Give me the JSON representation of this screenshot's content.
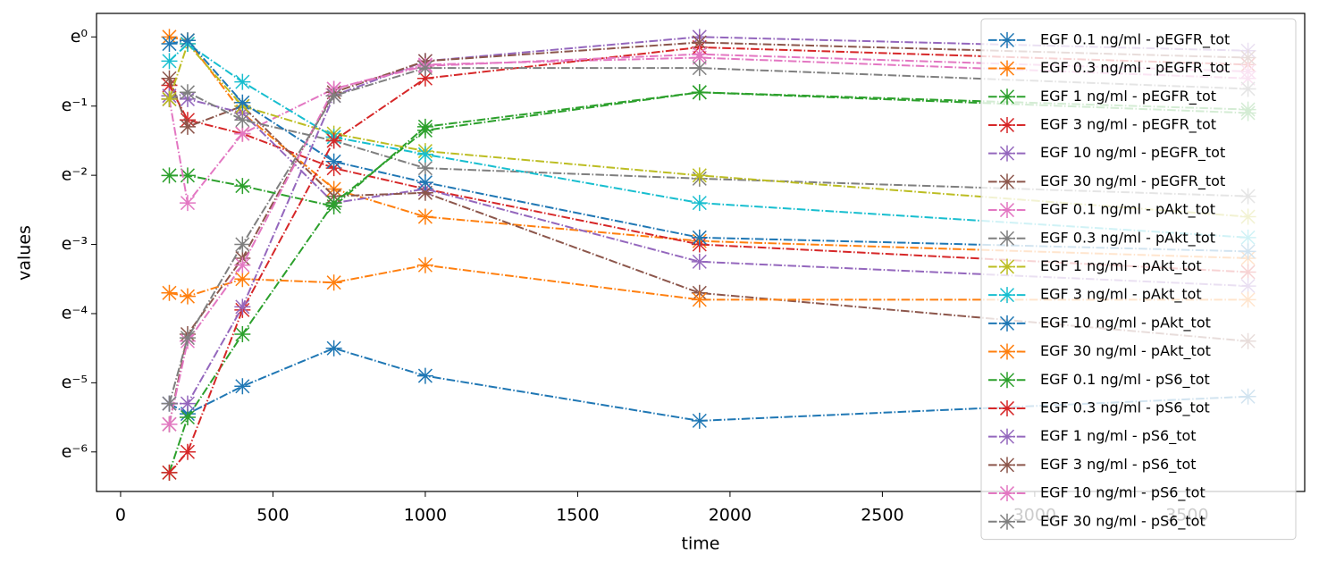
{
  "chart_data": {
    "type": "line",
    "x_label": "time",
    "y_label": "values",
    "x": [
      160,
      220,
      400,
      700,
      1000,
      1900,
      3700
    ],
    "xlim": [
      -79,
      3886
    ],
    "xticks": [
      0,
      500,
      1000,
      1500,
      2000,
      2500,
      3000,
      3500
    ],
    "ylim": [
      0.0014,
      1.405
    ],
    "log_scale": "y",
    "yticks": [
      {
        "value": 1,
        "label": "e⁰"
      },
      {
        "value": 0.367879,
        "label": "e⁻¹"
      },
      {
        "value": 0.135335,
        "label": "e⁻²"
      },
      {
        "value": 0.049787,
        "label": "e⁻³"
      },
      {
        "value": 0.018316,
        "label": "e⁻⁴"
      },
      {
        "value": 0.006738,
        "label": "e⁻⁵"
      },
      {
        "value": 0.002479,
        "label": "e⁻⁶"
      }
    ],
    "legend": "upper right",
    "series": [
      {
        "name": "EGF 0.1 ng/ml - pEGFR_tot",
        "color": "#1f77b4",
        "values": [
          0.00499,
          0.0043,
          0.00641,
          0.0111,
          0.00745,
          0.00389,
          0.00552
        ]
      },
      {
        "name": "EGF 0.3 ng/ml - pEGFR_tot",
        "color": "#ff7f0e",
        "values": [
          1,
          0.951,
          0.333,
          0.111,
          0.0743,
          0.0523,
          0.0408
        ]
      },
      {
        "name": "EGF 1 ng/ml - pEGFR_tot",
        "color": "#2ca02c",
        "values": [
          0.135,
          0.135,
          0.116,
          0.0863,
          0.273,
          0.449,
          0.35
        ]
      },
      {
        "name": "EGF 3 ng/ml - pEGFR_tot",
        "color": "#d62728",
        "values": [
          0.497,
          0.301,
          0.247,
          0.15,
          0.111,
          0.0498,
          0.0334
        ]
      },
      {
        "name": "EGF 10 ng/ml - pEGFR_tot",
        "color": "#9467bd",
        "values": [
          0.427,
          0.407,
          0.333,
          0.0907,
          0.111,
          0.0388,
          0.0273
        ]
      },
      {
        "name": "EGF 30 ng/ml - pEGFR_tot",
        "color": "#8c564b",
        "values": [
          0.549,
          0.273,
          0.368,
          0.1,
          0.105,
          0.0247,
          0.0123
        ]
      },
      {
        "name": "EGF 0.1 ng/ml - pAkt_tot",
        "color": "#e377c2",
        "values": [
          0.407,
          0.0907,
          0.247,
          0.472,
          0.67,
          0.741,
          0.549
        ]
      },
      {
        "name": "EGF 0.3 ng/ml - pAkt_tot",
        "color": "#7f7f7f",
        "values": [
          0.407,
          0.449,
          0.301,
          0.223,
          0.15,
          0.129,
          0.1
        ]
      },
      {
        "name": "EGF 1 ng/ml - pAkt_tot",
        "color": "#bcbd22",
        "values": [
          0.407,
          0.905,
          0.368,
          0.247,
          0.192,
          0.135,
          0.0743
        ]
      },
      {
        "name": "EGF 3 ng/ml - pAkt_tot",
        "color": "#17becf",
        "values": [
          0.705,
          0.905,
          0.522,
          0.235,
          0.183,
          0.0907,
          0.055
        ]
      },
      {
        "name": "EGF 10 ng/ml - pAkt_tot",
        "color": "#1f77b4",
        "values": [
          0.905,
          0.951,
          0.387,
          0.165,
          0.122,
          0.055,
          0.045
        ]
      },
      {
        "name": "EGF 30 ng/ml - pAkt_tot",
        "color": "#ff7f0e",
        "values": [
          0.0247,
          0.0235,
          0.0302,
          0.0287,
          0.0369,
          0.0224,
          0.0224
        ]
      },
      {
        "name": "EGF 0.1 ng/ml - pS6_tot",
        "color": "#2ca02c",
        "values": [
          0.00184,
          0.00409,
          0.0136,
          0.0907,
          0.259,
          0.449,
          0.333
        ]
      },
      {
        "name": "EGF 0.3 ng/ml - pS6_tot",
        "color": "#d62728",
        "values": [
          0.00184,
          0.00248,
          0.0193,
          0.223,
          0.549,
          0.861,
          0.67
        ]
      },
      {
        "name": "EGF 1 ng/ml - pS6_tot",
        "color": "#9467bd",
        "values": [
          0.00499,
          0.00499,
          0.0202,
          0.427,
          0.705,
          1,
          0.819
        ]
      },
      {
        "name": "EGF 3 ng/ml - pS6_tot",
        "color": "#8c564b",
        "values": [
          0.0037,
          0.0136,
          0.0408,
          0.449,
          0.705,
          0.923,
          0.741
        ]
      },
      {
        "name": "EGF 10 ng/ml - pS6_tot",
        "color": "#e377c2",
        "values": [
          0.0037,
          0.0123,
          0.0369,
          0.472,
          0.657,
          0.779,
          0.607
        ]
      },
      {
        "name": "EGF 30 ng/ml - pS6_tot",
        "color": "#7f7f7f",
        "values": [
          0.00499,
          0.0129,
          0.0498,
          0.427,
          0.638,
          0.638,
          0.472
        ]
      }
    ]
  }
}
